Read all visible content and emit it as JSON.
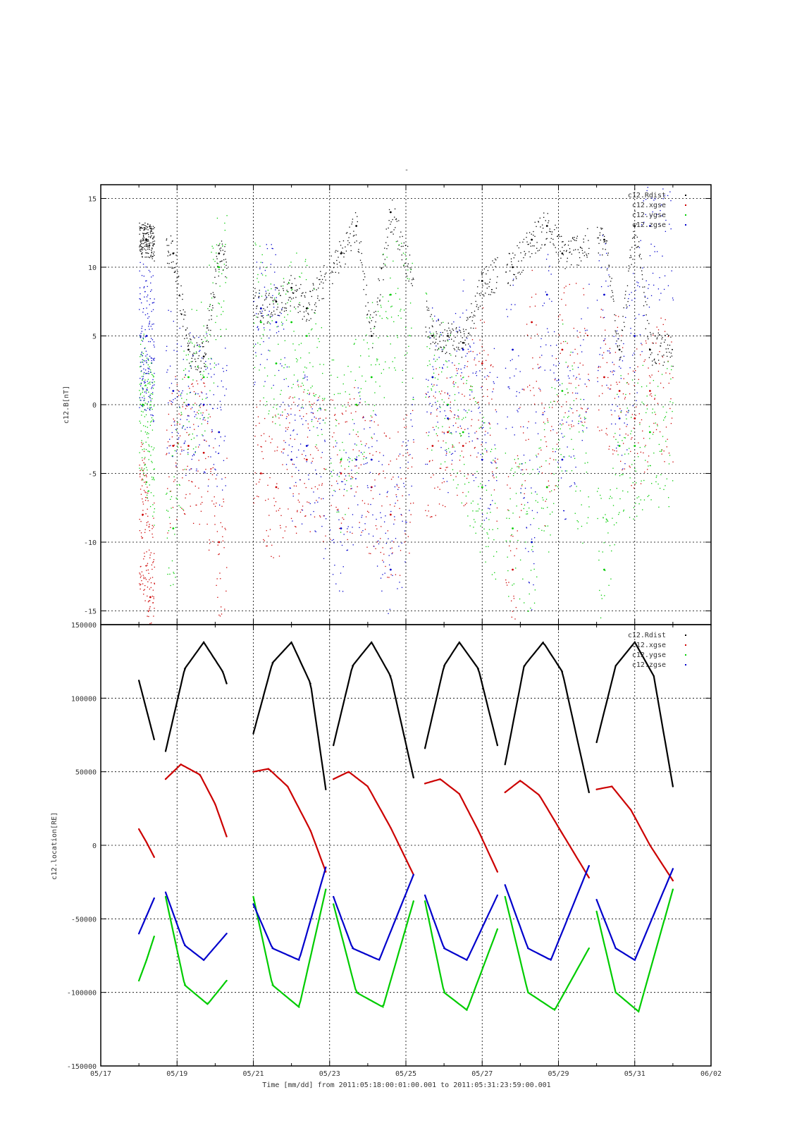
{
  "figure": {
    "title": "-",
    "xlabel": "Time [mm/dd]  from 2011:05:18:00:01:00.001  to  2011:05:31:23:59:00.001",
    "x_tick_labels": [
      "05/17",
      "05/19",
      "05/21",
      "05/23",
      "05/25",
      "05/27",
      "05/29",
      "05/31",
      "06/02"
    ],
    "x_tick_days": [
      17,
      19,
      21,
      23,
      25,
      27,
      29,
      31,
      33
    ],
    "x_minor_tick_days": [
      18,
      20,
      22,
      24,
      26,
      28,
      30,
      32
    ],
    "xlim_days": [
      17,
      33
    ],
    "gridlines": true
  },
  "colors": {
    "Rdist": "#000000",
    "xgse": "#cc0000",
    "ygse": "#00cc00",
    "zgse": "#0000cc"
  },
  "chart_data": [
    {
      "type": "scatter",
      "ylabel": "c12.B[nT]",
      "ylim": [
        -16,
        16
      ],
      "yticks": [
        -15,
        -10,
        -5,
        0,
        5,
        10,
        15
      ],
      "ytick_labels": [
        "-15",
        "-10",
        "-5",
        "0",
        "5",
        "10",
        "15"
      ],
      "legend": [
        "c12.Rdist",
        "c12.xgse",
        "c12.ygse",
        "c12.zgse"
      ],
      "legend_position": "top-right",
      "segments": [
        [
          18.0,
          18.4
        ],
        [
          18.7,
          20.3
        ],
        [
          21.0,
          22.9
        ],
        [
          23.0,
          25.2
        ],
        [
          25.5,
          27.4
        ],
        [
          27.6,
          29.8
        ],
        [
          30.0,
          32.0
        ]
      ],
      "series": [
        {
          "name": "c12.Rdist",
          "color_key": "Rdist",
          "x": [
            18.2,
            18.9,
            19.3,
            19.7,
            20.1,
            21.2,
            21.6,
            22.0,
            22.4,
            23.3,
            23.7,
            24.1,
            24.6,
            25.7,
            26.1,
            26.5,
            27.0,
            27.8,
            28.3,
            28.7,
            29.1,
            30.2,
            30.6,
            31.0,
            31.4
          ],
          "values": [
            12,
            11,
            4,
            3.5,
            11,
            7,
            7.5,
            8.5,
            7,
            11,
            13,
            5,
            14,
            5,
            5,
            4.5,
            9,
            10,
            12,
            13,
            11,
            12,
            4,
            13,
            4
          ]
        },
        {
          "name": "c12.xgse",
          "color_key": "xgse",
          "x": [
            18.1,
            18.3,
            18.9,
            19.3,
            19.7,
            20.1,
            21.2,
            21.6,
            22.0,
            22.4,
            23.3,
            23.7,
            24.1,
            24.6,
            25.7,
            26.1,
            26.5,
            27.0,
            27.8,
            28.3,
            28.7,
            29.1,
            30.2,
            30.6,
            31.0,
            31.4
          ],
          "values": [
            -8,
            -14,
            -3,
            -3,
            -3.5,
            -10,
            -5,
            -6,
            -4,
            -4,
            -5,
            -4,
            -6,
            -8,
            -3,
            -2,
            -3,
            3,
            -12,
            6,
            -6,
            4,
            2,
            1,
            -1,
            1
          ]
        },
        {
          "name": "c12.ygse",
          "color_key": "ygse",
          "x": [
            18.1,
            18.9,
            19.3,
            19.7,
            20.1,
            21.2,
            21.6,
            22.0,
            22.4,
            23.3,
            23.7,
            24.1,
            24.6,
            25.7,
            26.1,
            26.5,
            27.0,
            27.8,
            28.3,
            28.7,
            29.1,
            30.2,
            30.6,
            31.0,
            31.4
          ],
          "values": [
            0,
            -9,
            2,
            2,
            10,
            6,
            3,
            6,
            5,
            -4,
            0,
            2,
            8,
            2,
            0,
            -2,
            -6,
            -9,
            -10,
            -6,
            1,
            -12,
            -3,
            -3,
            -2
          ]
        },
        {
          "name": "c12.zgse",
          "color_key": "zgse",
          "x": [
            18.2,
            18.9,
            19.3,
            19.7,
            20.1,
            21.2,
            21.6,
            22.0,
            22.4,
            23.3,
            23.7,
            24.1,
            24.6,
            25.7,
            26.1,
            26.5,
            27.0,
            27.8,
            28.3,
            28.7,
            29.1,
            30.2,
            30.6,
            31.0,
            31.4
          ],
          "values": [
            5,
            1,
            0,
            0,
            -2,
            7,
            6,
            -4,
            -3,
            -9,
            -4,
            -4,
            -12,
            2,
            -1,
            4,
            -4,
            4,
            -10,
            8,
            -4,
            8,
            -1,
            5,
            13
          ]
        }
      ]
    },
    {
      "type": "scatter",
      "ylabel": "c12.location[RE]",
      "ylim": [
        -150000,
        150000
      ],
      "yticks": [
        -150000,
        -100000,
        -50000,
        0,
        50000,
        100000,
        150000
      ],
      "ytick_labels": [
        "-150000",
        "-100000",
        "-50000",
        "0",
        "50000",
        "100000",
        "150000"
      ],
      "legend": [
        "c12.Rdist",
        "c12.xgse",
        "c12.ygse",
        "c12.zgse"
      ],
      "legend_position": "top-right",
      "series": [
        {
          "name": "c12.Rdist",
          "color_key": "Rdist",
          "segments": [
            {
              "x": [
                18.0,
                18.2,
                18.4
              ],
              "values": [
                112000,
                92000,
                72000
              ]
            },
            {
              "x": [
                18.7,
                19.2,
                19.7,
                20.2,
                20.3
              ],
              "values": [
                64000,
                120000,
                138000,
                118000,
                110000
              ]
            },
            {
              "x": [
                21.0,
                21.5,
                22.0,
                22.5,
                22.9
              ],
              "values": [
                76000,
                124000,
                138000,
                110000,
                38000
              ]
            },
            {
              "x": [
                23.1,
                23.6,
                24.1,
                24.6,
                25.2
              ],
              "values": [
                68000,
                122000,
                138000,
                115000,
                46000
              ]
            },
            {
              "x": [
                25.5,
                26.0,
                26.4,
                26.9,
                27.4
              ],
              "values": [
                66000,
                122000,
                138000,
                120000,
                68000
              ]
            },
            {
              "x": [
                27.6,
                28.1,
                28.6,
                29.1,
                29.8
              ],
              "values": [
                55000,
                122000,
                138000,
                118000,
                36000
              ]
            },
            {
              "x": [
                30.0,
                30.5,
                31.0,
                31.5,
                32.0
              ],
              "values": [
                70000,
                122000,
                138000,
                115000,
                40000
              ]
            }
          ]
        },
        {
          "name": "c12.xgse",
          "color_key": "xgse",
          "segments": [
            {
              "x": [
                18.0,
                18.2,
                18.4
              ],
              "values": [
                11000,
                2000,
                -8000
              ]
            },
            {
              "x": [
                18.7,
                19.1,
                19.6,
                20.0,
                20.3
              ],
              "values": [
                45000,
                55000,
                48000,
                28000,
                6000
              ]
            },
            {
              "x": [
                21.0,
                21.4,
                21.9,
                22.5,
                22.9
              ],
              "values": [
                50000,
                52000,
                40000,
                10000,
                -18000
              ]
            },
            {
              "x": [
                23.1,
                23.5,
                24.0,
                24.6,
                25.2
              ],
              "values": [
                45000,
                50000,
                40000,
                12000,
                -20000
              ]
            },
            {
              "x": [
                25.5,
                25.9,
                26.4,
                26.9,
                27.4
              ],
              "values": [
                42000,
                45000,
                35000,
                10000,
                -18000
              ]
            },
            {
              "x": [
                27.6,
                28.0,
                28.5,
                29.1,
                29.8
              ],
              "values": [
                36000,
                44000,
                34000,
                8000,
                -22000
              ]
            },
            {
              "x": [
                30.0,
                30.4,
                30.9,
                31.4,
                32.0
              ],
              "values": [
                38000,
                40000,
                24000,
                0,
                -24000
              ]
            }
          ]
        },
        {
          "name": "c12.ygse",
          "color_key": "ygse",
          "segments": [
            {
              "x": [
                18.0,
                18.2,
                18.4
              ],
              "values": [
                -92000,
                -78000,
                -62000
              ]
            },
            {
              "x": [
                18.7,
                19.2,
                19.8,
                20.3
              ],
              "values": [
                -35000,
                -95000,
                -108000,
                -92000
              ]
            },
            {
              "x": [
                21.0,
                21.5,
                22.2,
                22.9
              ],
              "values": [
                -35000,
                -95000,
                -110000,
                -30000
              ]
            },
            {
              "x": [
                23.1,
                23.7,
                24.4,
                25.2
              ],
              "values": [
                -40000,
                -100000,
                -110000,
                -38000
              ]
            },
            {
              "x": [
                25.5,
                26.0,
                26.6,
                27.4
              ],
              "values": [
                -38000,
                -100000,
                -112000,
                -57000
              ]
            },
            {
              "x": [
                27.6,
                28.2,
                28.9,
                29.8
              ],
              "values": [
                -35000,
                -100000,
                -112000,
                -70000
              ]
            },
            {
              "x": [
                30.0,
                30.5,
                31.1,
                32.0
              ],
              "values": [
                -45000,
                -100000,
                -113000,
                -30000
              ]
            }
          ]
        },
        {
          "name": "c12.zgse",
          "color_key": "zgse",
          "segments": [
            {
              "x": [
                18.0,
                18.2,
                18.4
              ],
              "values": [
                -60000,
                -48000,
                -36000
              ]
            },
            {
              "x": [
                18.7,
                19.2,
                19.7,
                20.3
              ],
              "values": [
                -32000,
                -68000,
                -78000,
                -60000
              ]
            },
            {
              "x": [
                21.0,
                21.5,
                22.2,
                22.9
              ],
              "values": [
                -40000,
                -70000,
                -78000,
                -15000
              ]
            },
            {
              "x": [
                23.1,
                23.6,
                24.3,
                25.2
              ],
              "values": [
                -35000,
                -70000,
                -78000,
                -20000
              ]
            },
            {
              "x": [
                25.5,
                26.0,
                26.6,
                27.4
              ],
              "values": [
                -34000,
                -70000,
                -78000,
                -34000
              ]
            },
            {
              "x": [
                27.6,
                28.2,
                28.8,
                29.8
              ],
              "values": [
                -27000,
                -70000,
                -78000,
                -14000
              ]
            },
            {
              "x": [
                30.0,
                30.5,
                31.0,
                32.0
              ],
              "values": [
                -37000,
                -70000,
                -78000,
                -16000
              ]
            }
          ]
        }
      ]
    }
  ]
}
